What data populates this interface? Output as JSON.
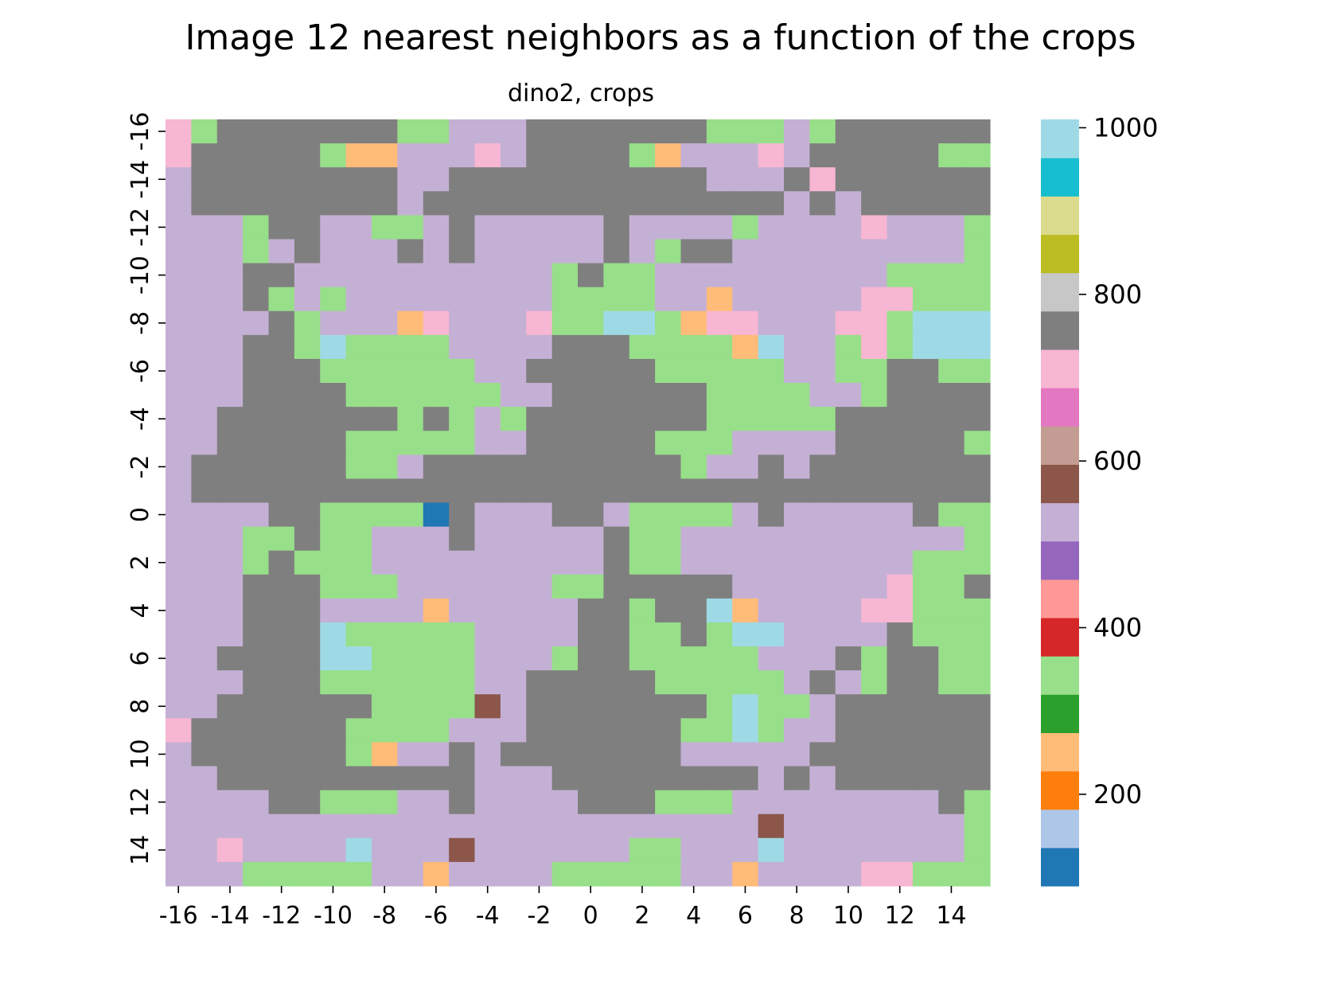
{
  "chart_data": {
    "type": "heatmap",
    "title": "Image 12 nearest neighbors as a function of the crops",
    "subtitle": "dino2, crops",
    "xlabel": "",
    "ylabel": "",
    "x_values": [
      -16,
      -15,
      -14,
      -13,
      -12,
      -11,
      -10,
      -9,
      -8,
      -7,
      -6,
      -5,
      -4,
      -3,
      -2,
      -1,
      0,
      1,
      2,
      3,
      4,
      5,
      6,
      7,
      8,
      9,
      10,
      11,
      12,
      13,
      14,
      15
    ],
    "y_values": [
      -16,
      -15,
      -14,
      -13,
      -12,
      -11,
      -10,
      -9,
      -8,
      -7,
      -6,
      -5,
      -4,
      -3,
      -2,
      -1,
      0,
      1,
      2,
      3,
      4,
      5,
      6,
      7,
      8,
      9,
      10,
      11,
      12,
      13,
      14,
      15
    ],
    "x_tick_labels": [
      "-16",
      "-14",
      "-12",
      "-10",
      "-8",
      "-6",
      "-4",
      "-2",
      "0",
      "2",
      "4",
      "6",
      "8",
      "10",
      "12",
      "14"
    ],
    "y_tick_labels": [
      "-16",
      "-14",
      "-12",
      "-10",
      "-8",
      "-6",
      "-4",
      "-2",
      "0",
      "2",
      "4",
      "6",
      "8",
      "10",
      "12",
      "14"
    ],
    "z_range": [
      90,
      1010
    ],
    "colorbar_ticks": [
      "200",
      "400",
      "600",
      "800",
      "1000"
    ],
    "colorbar_tick_values": [
      200,
      400,
      600,
      800,
      1000
    ],
    "palette": [
      "#1f77b4",
      "#aec7e8",
      "#ff7f0e",
      "#ffbb78",
      "#2ca02c",
      "#98df8a",
      "#d62728",
      "#ff9896",
      "#9467bd",
      "#c5b0d5",
      "#8c564b",
      "#c49c94",
      "#e377c2",
      "#f7b6d2",
      "#7f7f7f",
      "#c7c7c7",
      "#bcbd22",
      "#dbdb8d",
      "#17becf",
      "#9edae5"
    ],
    "legend_position": "right colorbar",
    "grid": false,
    "row_codes": [
      "PLGGGGGGGLLMMMGGGGGGGLLLMLGGGGGG",
      "PGGGGGLOOMMMPMGGGGLOMMMPMGGGGGLL",
      "MGGGGGGGGMMGGGGGGGGGGMMMGPGGGGGG",
      "MGGGGGGGGMGGGGGGGGGGGGGGMGMGGGGG",
      "MMMLGGMMLLMGMMMMMGMMMMLMMMMPMMML",
      "MMMLMGMMMGMGMMMMMGMLGGMMMMMMMMML",
      "MMMGGMMMMMMMMMMLGLLMMMMMMMMMLLLL",
      "MMMGLMLMMMMMMMMLLLLMMOMMMMMPPLLL",
      "MMMMGLMMMOPMMMPLLCCLOPPMMMPPLCCC",
      "MMMGGLCLLLLMMMMGGGLLLLOCMMLPLCCC",
      "MMMGGGLLLLLLMMGGGGGLLLLLMMLLGGLL",
      "MMMGGGGLLLLLLMMGGGGGGLLLLMMLGGGG",
      "MMGGGGGGGLGLMLGGGGGGGLLLLLGGGGGG",
      "MMGGGGGLLLLLMMGGGGGLLLMMMMGGGGGL",
      "MGGGGGGLLMGGGGGGGGGGLMMGMGGGGGGG",
      "MGGGGGGGGGGGGGGGGGGGGGGGGGGGGGGG",
      "MMMMGGLLLLBGMMMGGMLLLLMGMMMMMGLL",
      "MMMLLGLLMMMGMMMMMGLLMMMMMMMMMMML",
      "MMMLGLLLMMMMMMMMMGLLMMMMMMMMMLLL",
      "MMMGGGLLLMMMMMMLLGGGGGMMMMMMPLLG",
      "MMMGGGMMMMOMMMMMGGLGGCOMMMMPPLLL",
      "MMMGGGCLLLLLMMMMGGLLGLCCMMMMGLLL",
      "MMGGGGCCLLLLMMMLGGLLLLLMMMGLGGLL",
      "MMMGGGLLLLLLMMGGGGGLLLLLMGMLGGLL",
      "MMGGGGGGLLLLNMGGGGGGGLCLLMGGGGGG",
      "PGGGGGGLLLLMMMGGGGGGLLCLMMGGGGGG",
      "MGGGGGGLOMMGMGGGGGGGMMMMMGGGGGGG",
      "MMGGGGGGGGGGMMMGGGGGGGGMGMGGGGGG",
      "MMMMGGLLLMMGMMMMGGGLLLMMMMMMMMGL",
      "MMMMMMMMMMMMMMMMMMMMMMMNMMMMMMML",
      "MMPMMMMCMMMNMMMMMMLLMMMCMMMMMMML",
      "MMMLLLLLMMOMMMMLLLLLMMOMMMMPPLLL"
    ],
    "code_map": {
      "B": {
        "color": "#1f77b4",
        "value": 100
      },
      "O": {
        "color": "#ffbb78",
        "value": 250
      },
      "L": {
        "color": "#98df8a",
        "value": 350
      },
      "M": {
        "color": "#c5b0d5",
        "value": 550
      },
      "N": {
        "color": "#8c564b",
        "value": 600
      },
      "P": {
        "color": "#f7b6d2",
        "value": 710
      },
      "G": {
        "color": "#7f7f7f",
        "value": 760
      },
      "C": {
        "color": "#9edae5",
        "value": 1000
      }
    }
  }
}
